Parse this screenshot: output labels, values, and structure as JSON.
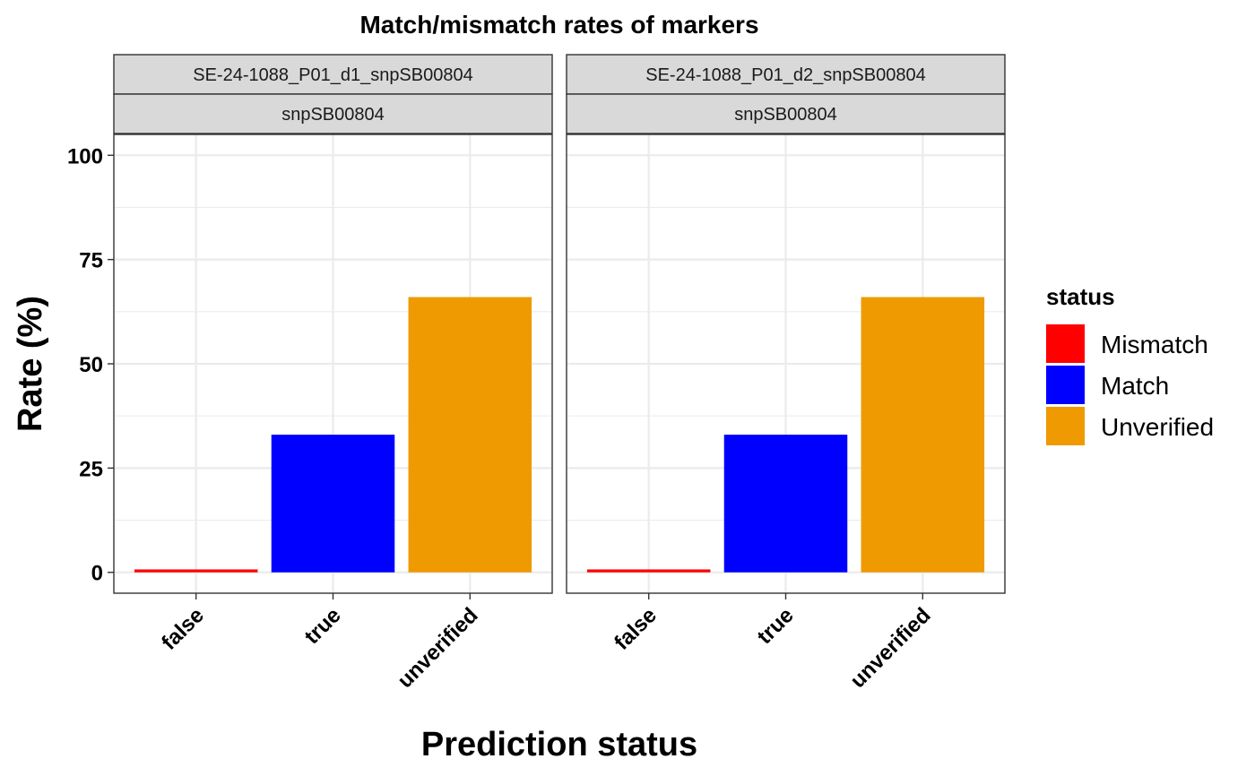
{
  "chart_data": {
    "type": "bar",
    "title": "Match/mismatch rates of markers",
    "xlabel": "Prediction status",
    "ylabel": "Rate (%)",
    "ylim": [
      0,
      100
    ],
    "y_ticks": [
      0,
      25,
      50,
      75,
      100
    ],
    "categories": [
      "false",
      "true",
      "unverified"
    ],
    "grid": true,
    "legend": {
      "title": "status",
      "placement": "right",
      "entries": [
        {
          "label": "Mismatch",
          "color": "#FF0000"
        },
        {
          "label": "Match",
          "color": "#0000FF"
        },
        {
          "label": "Unverified",
          "color": "#EE9A00"
        }
      ]
    },
    "facets": [
      {
        "strips": [
          "SE-24-1088_P01_d1_snpSB00804",
          "snpSB00804"
        ],
        "bars": [
          {
            "category": "false",
            "status": "Mismatch",
            "value": 0.7
          },
          {
            "category": "true",
            "status": "Match",
            "value": 33
          },
          {
            "category": "unverified",
            "status": "Unverified",
            "value": 66
          }
        ]
      },
      {
        "strips": [
          "SE-24-1088_P01_d2_snpSB00804",
          "snpSB00804"
        ],
        "bars": [
          {
            "category": "false",
            "status": "Mismatch",
            "value": 0.7
          },
          {
            "category": "true",
            "status": "Match",
            "value": 33
          },
          {
            "category": "unverified",
            "status": "Unverified",
            "value": 66
          }
        ]
      }
    ]
  }
}
